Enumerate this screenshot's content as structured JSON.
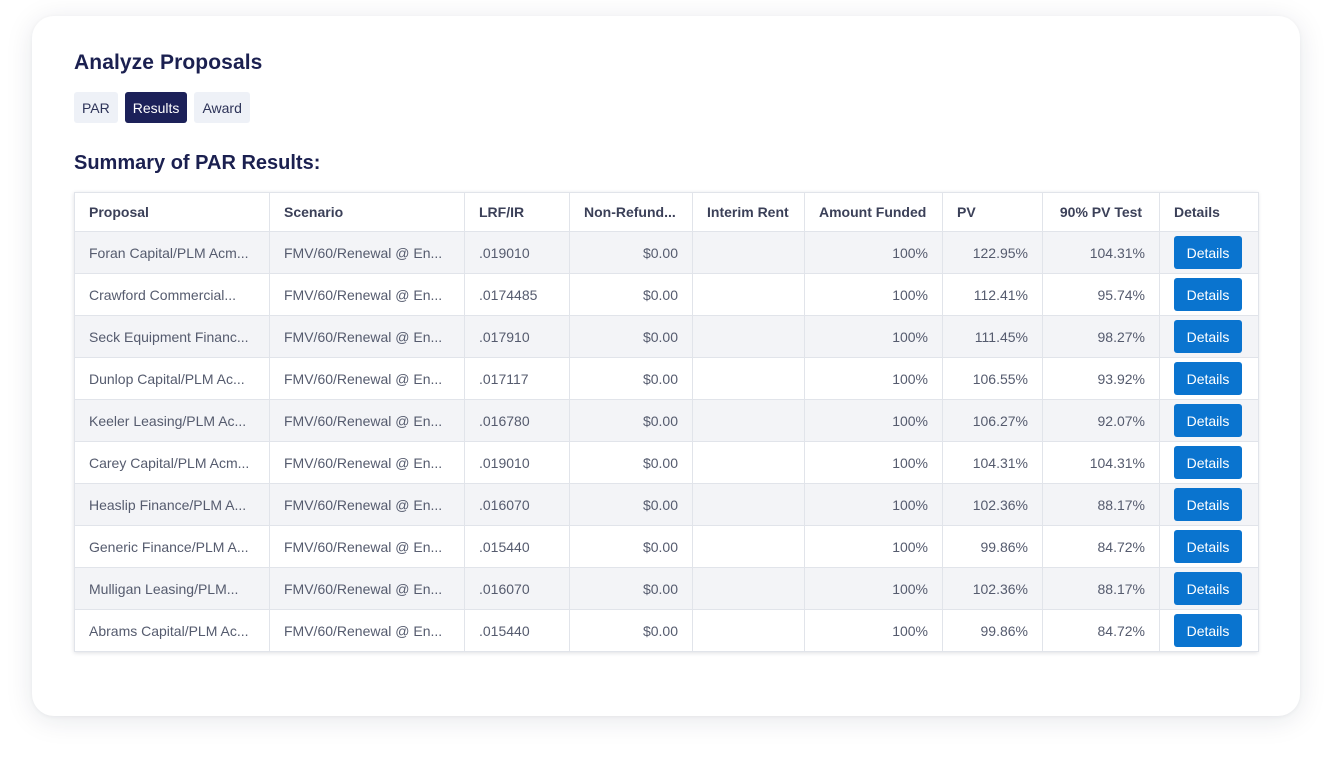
{
  "page": {
    "title": "Analyze Proposals"
  },
  "tabs": [
    {
      "label": "PAR",
      "active": false
    },
    {
      "label": "Results",
      "active": true
    },
    {
      "label": "Award",
      "active": false
    }
  ],
  "section": {
    "title": "Summary of PAR Results:"
  },
  "table": {
    "columns": [
      "Proposal",
      "Scenario",
      "LRF/IR",
      "Non-Refund...",
      "Interim Rent",
      "Amount Funded",
      "PV",
      "90% PV Test",
      "Details"
    ],
    "button_label": "Details",
    "rows": [
      {
        "proposal": "Foran Capital/PLM Acm...",
        "scenario": "FMV/60/Renewal @ En...",
        "lrf": ".019010",
        "nonrefund": "$0.00",
        "interim": "",
        "funded": "100%",
        "pv": "122.95%",
        "pvtest": "104.31%"
      },
      {
        "proposal": "Crawford Commercial...",
        "scenario": "FMV/60/Renewal @ En...",
        "lrf": ".0174485",
        "nonrefund": "$0.00",
        "interim": "",
        "funded": "100%",
        "pv": "112.41%",
        "pvtest": "95.74%"
      },
      {
        "proposal": "Seck Equipment Financ...",
        "scenario": "FMV/60/Renewal @ En...",
        "lrf": ".017910",
        "nonrefund": "$0.00",
        "interim": "",
        "funded": "100%",
        "pv": "111.45%",
        "pvtest": "98.27%"
      },
      {
        "proposal": "Dunlop Capital/PLM Ac...",
        "scenario": "FMV/60/Renewal @ En...",
        "lrf": ".017117",
        "nonrefund": "$0.00",
        "interim": "",
        "funded": "100%",
        "pv": "106.55%",
        "pvtest": "93.92%"
      },
      {
        "proposal": "Keeler Leasing/PLM Ac...",
        "scenario": "FMV/60/Renewal @ En...",
        "lrf": ".016780",
        "nonrefund": "$0.00",
        "interim": "",
        "funded": "100%",
        "pv": "106.27%",
        "pvtest": "92.07%"
      },
      {
        "proposal": "Carey Capital/PLM Acm...",
        "scenario": "FMV/60/Renewal @ En...",
        "lrf": ".019010",
        "nonrefund": "$0.00",
        "interim": "",
        "funded": "100%",
        "pv": "104.31%",
        "pvtest": "104.31%"
      },
      {
        "proposal": "Heaslip Finance/PLM A...",
        "scenario": "FMV/60/Renewal @ En...",
        "lrf": ".016070",
        "nonrefund": "$0.00",
        "interim": "",
        "funded": "100%",
        "pv": "102.36%",
        "pvtest": "88.17%"
      },
      {
        "proposal": "Generic Finance/PLM A...",
        "scenario": "FMV/60/Renewal @ En...",
        "lrf": ".015440",
        "nonrefund": "$0.00",
        "interim": "",
        "funded": "100%",
        "pv": "99.86%",
        "pvtest": "84.72%"
      },
      {
        "proposal": "Mulligan Leasing/PLM...",
        "scenario": "FMV/60/Renewal @ En...",
        "lrf": ".016070",
        "nonrefund": "$0.00",
        "interim": "",
        "funded": "100%",
        "pv": "102.36%",
        "pvtest": "88.17%"
      },
      {
        "proposal": "Abrams Capital/PLM Ac...",
        "scenario": "FMV/60/Renewal @ En...",
        "lrf": ".015440",
        "nonrefund": "$0.00",
        "interim": "",
        "funded": "100%",
        "pv": "99.86%",
        "pvtest": "84.72%"
      }
    ]
  }
}
